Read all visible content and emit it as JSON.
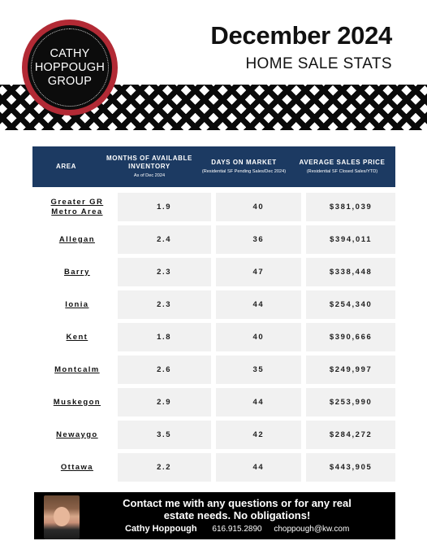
{
  "logo": {
    "line1": "CATHY",
    "line2": "HOPPOUGH",
    "line3": "GROUP"
  },
  "header": {
    "title": "December 2024",
    "subtitle": "HOME SALE STATS"
  },
  "table": {
    "columns": [
      {
        "main": "AREA",
        "sub": ""
      },
      {
        "main": "MONTHS OF AVAILABLE INVENTORY",
        "sub": "As of Dec 2024"
      },
      {
        "main": "DAYS ON MARKET",
        "sub": "(Residential SF Pending Sales/Dec 2024)"
      },
      {
        "main": "AVERAGE SALES PRICE",
        "sub": "(Residential SF Closed Sales/YTD)"
      }
    ],
    "rows": [
      {
        "area": "Greater GR Metro Area",
        "inventory": "1.9",
        "days": "40",
        "price": "$381,039"
      },
      {
        "area": "Allegan",
        "inventory": "2.4",
        "days": "36",
        "price": "$394,011"
      },
      {
        "area": "Barry",
        "inventory": "2.3",
        "days": "47",
        "price": "$338,448"
      },
      {
        "area": "Ionia",
        "inventory": "2.3",
        "days": "44",
        "price": "$254,340"
      },
      {
        "area": "Kent",
        "inventory": "1.8",
        "days": "40",
        "price": "$390,666"
      },
      {
        "area": "Montcalm",
        "inventory": "2.6",
        "days": "35",
        "price": "$249,997"
      },
      {
        "area": "Muskegon",
        "inventory": "2.9",
        "days": "44",
        "price": "$253,990"
      },
      {
        "area": "Newaygo",
        "inventory": "3.5",
        "days": "42",
        "price": "$284,272"
      },
      {
        "area": "Ottawa",
        "inventory": "2.2",
        "days": "44",
        "price": "$443,905"
      }
    ]
  },
  "footer": {
    "message": "Contact me with any questions or for any real estate needs. No obligations!",
    "name": "Cathy Hoppough",
    "phone": "616.915.2890",
    "email": "choppough@kw.com"
  }
}
